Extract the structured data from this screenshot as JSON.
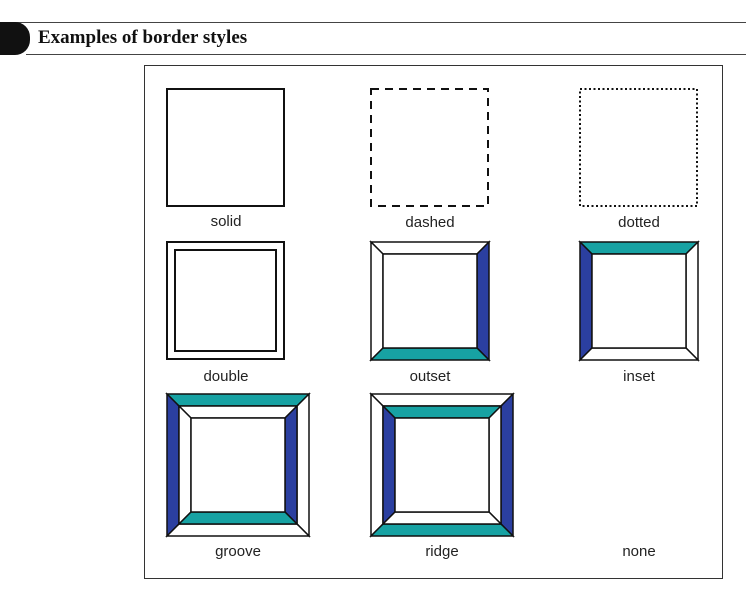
{
  "header": {
    "title": "Examples of border styles"
  },
  "colors": {
    "dark": "#2b3fa0",
    "light": "#17a2a3",
    "white": "#ffffff",
    "line": "#111111"
  },
  "examples": [
    {
      "label": "solid"
    },
    {
      "label": "dashed"
    },
    {
      "label": "dotted"
    },
    {
      "label": "double"
    },
    {
      "label": "outset"
    },
    {
      "label": "inset"
    },
    {
      "label": "groove"
    },
    {
      "label": "ridge"
    },
    {
      "label": "none"
    }
  ]
}
